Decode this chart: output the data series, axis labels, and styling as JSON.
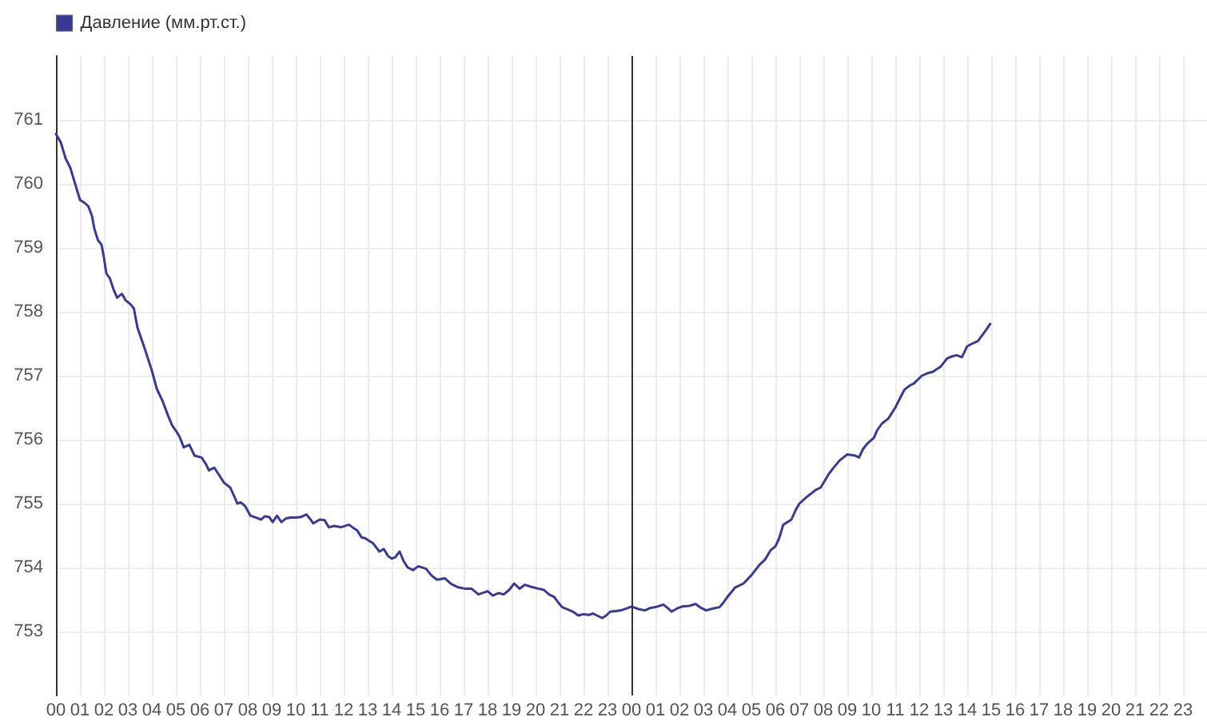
{
  "chart_data": {
    "type": "line",
    "legend": "top left",
    "grid": true,
    "marker": "none",
    "line_style": "solid",
    "xlim": [
      0,
      48
    ],
    "ylim": [
      752,
      762
    ],
    "xticks": [
      {
        "value": 0,
        "label": "00"
      },
      {
        "value": 1,
        "label": "01"
      },
      {
        "value": 2,
        "label": "02"
      },
      {
        "value": 3,
        "label": "03"
      },
      {
        "value": 4,
        "label": "04"
      },
      {
        "value": 5,
        "label": "05"
      },
      {
        "value": 6,
        "label": "06"
      },
      {
        "value": 7,
        "label": "07"
      },
      {
        "value": 8,
        "label": "08"
      },
      {
        "value": 9,
        "label": "09"
      },
      {
        "value": 10,
        "label": "10"
      },
      {
        "value": 11,
        "label": "11"
      },
      {
        "value": 12,
        "label": "12"
      },
      {
        "value": 13,
        "label": "13"
      },
      {
        "value": 14,
        "label": "14"
      },
      {
        "value": 15,
        "label": "15"
      },
      {
        "value": 16,
        "label": "16"
      },
      {
        "value": 17,
        "label": "17"
      },
      {
        "value": 18,
        "label": "18"
      },
      {
        "value": 19,
        "label": "19"
      },
      {
        "value": 20,
        "label": "20"
      },
      {
        "value": 21,
        "label": "21"
      },
      {
        "value": 22,
        "label": "22"
      },
      {
        "value": 23,
        "label": "23"
      },
      {
        "value": 24,
        "label": "00"
      },
      {
        "value": 25,
        "label": "01"
      },
      {
        "value": 26,
        "label": "02"
      },
      {
        "value": 27,
        "label": "03"
      },
      {
        "value": 28,
        "label": "04"
      },
      {
        "value": 29,
        "label": "05"
      },
      {
        "value": 30,
        "label": "06"
      },
      {
        "value": 31,
        "label": "07"
      },
      {
        "value": 32,
        "label": "08"
      },
      {
        "value": 33,
        "label": "09"
      },
      {
        "value": 34,
        "label": "10"
      },
      {
        "value": 35,
        "label": "11"
      },
      {
        "value": 36,
        "label": "12"
      },
      {
        "value": 37,
        "label": "13"
      },
      {
        "value": 38,
        "label": "14"
      },
      {
        "value": 39,
        "label": "15"
      },
      {
        "value": 40,
        "label": "16"
      },
      {
        "value": 41,
        "label": "17"
      },
      {
        "value": 42,
        "label": "18"
      },
      {
        "value": 43,
        "label": "19"
      },
      {
        "value": 44,
        "label": "20"
      },
      {
        "value": 45,
        "label": "21"
      },
      {
        "value": 46,
        "label": "22"
      },
      {
        "value": 47,
        "label": "23"
      }
    ],
    "yticks": [
      753,
      754,
      755,
      756,
      757,
      758,
      759,
      760,
      761
    ],
    "ref_lines": [
      {
        "axis": "x",
        "value": 24,
        "color": "#333333"
      }
    ],
    "series": [
      {
        "name": "Давление (мм.рт.ст.)",
        "color": "#393996",
        "x": [
          0,
          0.2,
          0.4,
          0.6,
          0.8,
          1.0,
          1.2,
          1.35,
          1.5,
          1.6,
          1.75,
          1.9,
          2.0,
          2.1,
          2.25,
          2.4,
          2.55,
          2.75,
          2.9,
          3.1,
          3.25,
          3.4,
          3.67,
          4.0,
          4.2,
          4.45,
          4.67,
          4.85,
          5.0,
          5.15,
          5.33,
          5.56,
          5.78,
          6.07,
          6.25,
          6.38,
          6.6,
          6.8,
          7.0,
          7.27,
          7.45,
          7.56,
          7.7,
          7.89,
          8.11,
          8.35,
          8.56,
          8.7,
          8.89,
          9.04,
          9.22,
          9.4,
          9.6,
          9.78,
          10.0,
          10.22,
          10.44,
          10.6,
          10.73,
          11.0,
          11.2,
          11.38,
          11.6,
          11.89,
          12.22,
          12.4,
          12.56,
          12.75,
          12.89,
          13.05,
          13.22,
          13.49,
          13.67,
          13.85,
          14.0,
          14.15,
          14.33,
          14.5,
          14.67,
          14.89,
          15.11,
          15.44,
          15.65,
          15.89,
          16.22,
          16.5,
          16.78,
          17.05,
          17.33,
          17.62,
          18.0,
          18.22,
          18.45,
          18.67,
          18.9,
          19.11,
          19.33,
          19.56,
          19.8,
          20.11,
          20.35,
          20.56,
          20.78,
          20.95,
          21.11,
          21.44,
          21.6,
          21.78,
          22.0,
          22.22,
          22.4,
          22.56,
          22.78,
          22.95,
          23.11,
          23.35,
          23.56,
          23.8,
          24.0,
          24.3,
          24.56,
          24.8,
          25.0,
          25.33,
          25.5,
          25.67,
          25.9,
          26.11,
          26.4,
          26.67,
          26.9,
          27.11,
          27.4,
          27.67,
          27.85,
          28.0,
          28.33,
          28.67,
          29.0,
          29.33,
          29.56,
          29.8,
          30.0,
          30.15,
          30.33,
          30.67,
          30.85,
          31.0,
          31.33,
          31.67,
          31.89,
          32.05,
          32.22,
          32.45,
          32.67,
          33.0,
          33.33,
          33.49,
          33.65,
          33.84,
          34.11,
          34.25,
          34.44,
          34.71,
          35.0,
          35.2,
          35.38,
          35.58,
          35.78,
          36.11,
          36.35,
          36.56,
          36.89,
          37.16,
          37.35,
          37.56,
          37.78,
          38.0,
          38.2,
          38.44,
          38.6,
          38.78,
          38.96
        ],
        "values": [
          760.78,
          760.65,
          760.4,
          760.25,
          760.0,
          759.75,
          759.7,
          759.65,
          759.5,
          759.3,
          759.12,
          759.05,
          758.85,
          758.6,
          758.52,
          758.35,
          758.22,
          758.28,
          758.18,
          758.12,
          758.05,
          757.75,
          757.46,
          757.08,
          756.8,
          756.6,
          756.38,
          756.22,
          756.14,
          756.05,
          755.88,
          755.92,
          755.75,
          755.72,
          755.62,
          755.52,
          755.56,
          755.45,
          755.33,
          755.25,
          755.1,
          755.0,
          755.02,
          754.96,
          754.81,
          754.78,
          754.75,
          754.8,
          754.79,
          754.71,
          754.81,
          754.71,
          754.77,
          754.78,
          754.78,
          754.79,
          754.83,
          754.76,
          754.69,
          754.75,
          754.74,
          754.63,
          754.65,
          754.63,
          754.67,
          754.62,
          754.58,
          754.47,
          754.46,
          754.42,
          754.38,
          754.25,
          754.29,
          754.18,
          754.14,
          754.16,
          754.25,
          754.1,
          754.0,
          753.96,
          754.02,
          753.98,
          753.88,
          753.81,
          753.83,
          753.74,
          753.69,
          753.67,
          753.67,
          753.58,
          753.63,
          753.56,
          753.6,
          753.58,
          753.65,
          753.75,
          753.67,
          753.73,
          753.7,
          753.67,
          753.65,
          753.58,
          753.54,
          753.45,
          753.38,
          753.33,
          753.3,
          753.25,
          753.27,
          753.26,
          753.28,
          753.25,
          753.21,
          753.25,
          753.31,
          753.32,
          753.33,
          753.36,
          753.39,
          753.35,
          753.33,
          753.37,
          753.38,
          753.42,
          753.37,
          753.31,
          753.36,
          753.39,
          753.4,
          753.43,
          753.37,
          753.33,
          753.36,
          753.38,
          753.46,
          753.54,
          753.69,
          753.75,
          753.88,
          754.04,
          754.12,
          754.27,
          754.33,
          754.45,
          754.67,
          754.75,
          754.9,
          755.0,
          755.11,
          755.21,
          755.25,
          755.35,
          755.46,
          755.57,
          755.67,
          755.77,
          755.75,
          755.72,
          755.85,
          755.94,
          756.03,
          756.15,
          756.25,
          756.33,
          756.5,
          756.65,
          756.78,
          756.84,
          756.88,
          757.0,
          757.04,
          757.06,
          757.14,
          757.27,
          757.3,
          757.32,
          757.29,
          757.46,
          757.5,
          757.54,
          757.62,
          757.71,
          757.81
        ]
      }
    ]
  }
}
